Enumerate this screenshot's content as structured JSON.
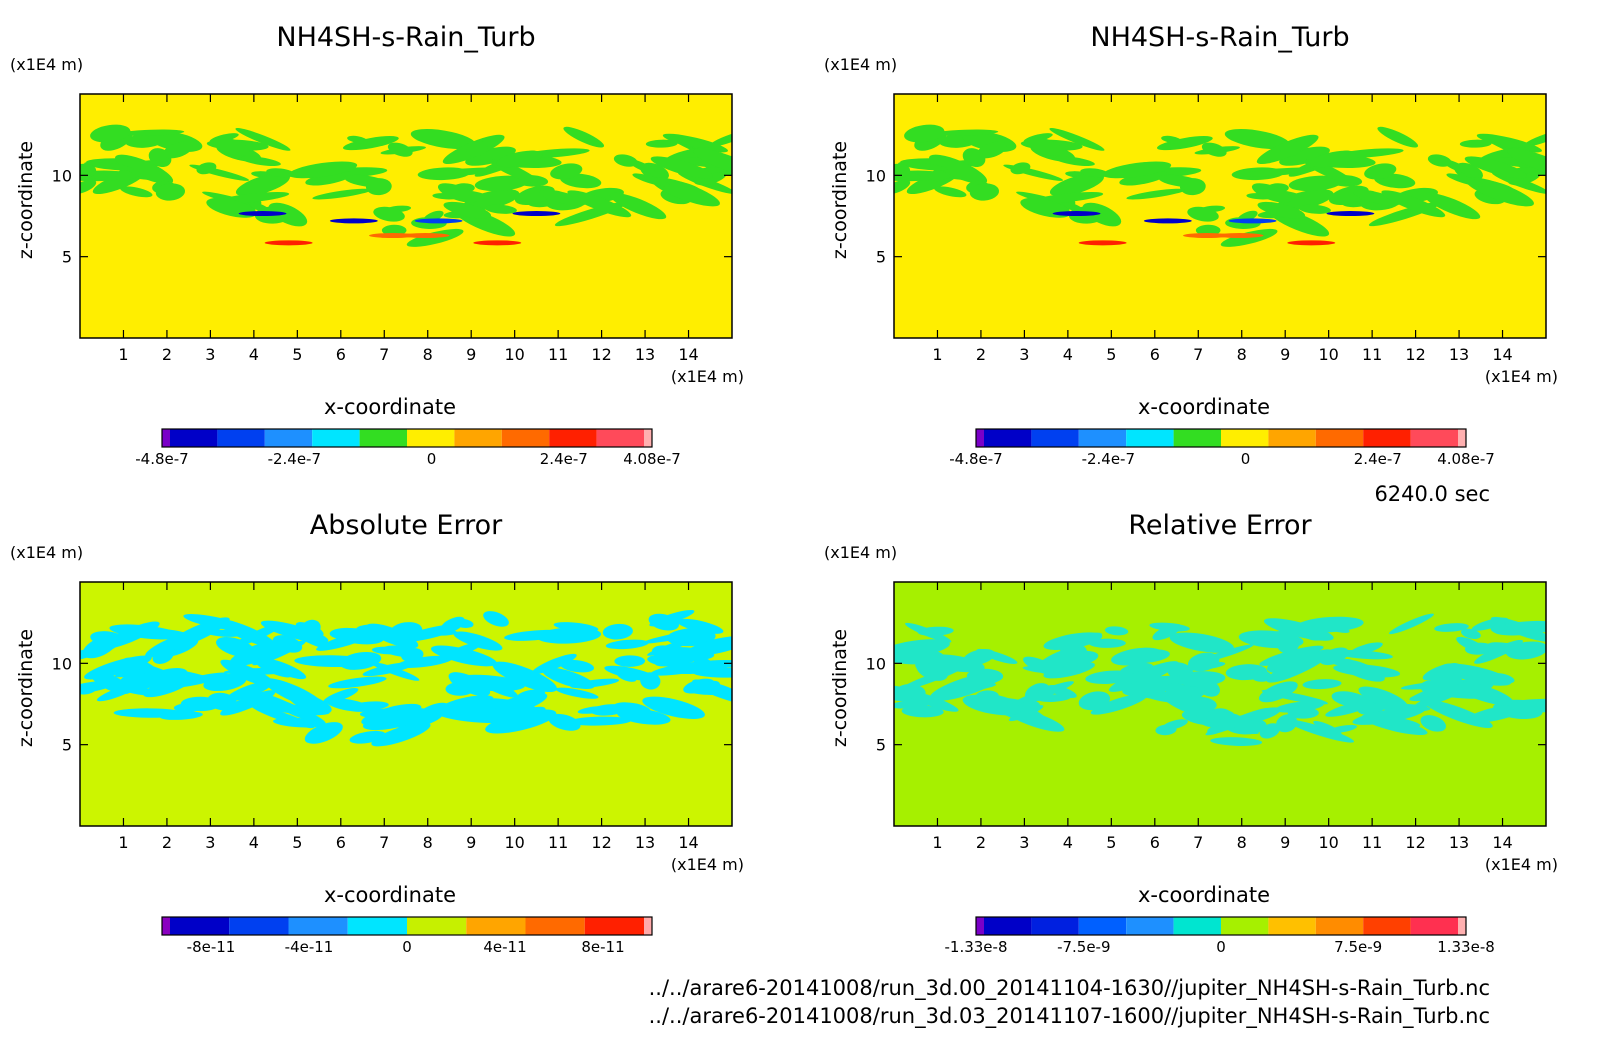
{
  "chart_data": [
    {
      "type": "heatmap",
      "title": "NH4SH-s-Rain_Turb",
      "xlabel": "x-coordinate",
      "ylabel": "z-coordinate",
      "x_unit": "(x1E4 m)",
      "y_unit": "(x1E4 m)",
      "x_ticks": [
        "1",
        "2",
        "3",
        "4",
        "5",
        "6",
        "7",
        "8",
        "9",
        "10",
        "11",
        "12",
        "13",
        "14"
      ],
      "y_ticks": [
        "5",
        "10"
      ],
      "colorbar": {
        "labels": [
          {
            "v": "-4.8e-7",
            "at": 0
          },
          {
            "v": "-2.4e-7",
            "at": 0.27
          },
          {
            "v": "0",
            "at": 0.55
          },
          {
            "v": "2.4e-7",
            "at": 0.82
          },
          {
            "v": "4.08e-7",
            "at": 1
          }
        ],
        "colors": [
          "#7a00c8",
          "#0000c8",
          "#0040f0",
          "#1e90ff",
          "#00e5ff",
          "#33dd22",
          "#ffee00",
          "#ffa500",
          "#ff6a00",
          "#ff2000",
          "#ff4a5a",
          "#ffb0b0"
        ]
      },
      "background": "#ffee00",
      "pattern": "#33dd22"
    },
    {
      "type": "heatmap",
      "title": "NH4SH-s-Rain_Turb",
      "xlabel": "x-coordinate",
      "ylabel": "z-coordinate",
      "x_unit": "(x1E4 m)",
      "y_unit": "(x1E4 m)",
      "x_ticks": [
        "1",
        "2",
        "3",
        "4",
        "5",
        "6",
        "7",
        "8",
        "9",
        "10",
        "11",
        "12",
        "13",
        "14"
      ],
      "y_ticks": [
        "5",
        "10"
      ],
      "colorbar": {
        "labels": [
          {
            "v": "-4.8e-7",
            "at": 0
          },
          {
            "v": "-2.4e-7",
            "at": 0.27
          },
          {
            "v": "0",
            "at": 0.55
          },
          {
            "v": "2.4e-7",
            "at": 0.82
          },
          {
            "v": "4.08e-7",
            "at": 1
          }
        ],
        "colors": [
          "#7a00c8",
          "#0000c8",
          "#0040f0",
          "#1e90ff",
          "#00e5ff",
          "#33dd22",
          "#ffee00",
          "#ffa500",
          "#ff6a00",
          "#ff2000",
          "#ff4a5a",
          "#ffb0b0"
        ]
      },
      "background": "#ffee00",
      "pattern": "#33dd22"
    },
    {
      "type": "heatmap",
      "title": "Absolute Error",
      "xlabel": "x-coordinate",
      "ylabel": "z-coordinate",
      "x_unit": "(x1E4 m)",
      "y_unit": "(x1E4 m)",
      "x_ticks": [
        "1",
        "2",
        "3",
        "4",
        "5",
        "6",
        "7",
        "8",
        "9",
        "10",
        "11",
        "12",
        "13",
        "14"
      ],
      "y_ticks": [
        "5",
        "10"
      ],
      "colorbar": {
        "labels": [
          {
            "v": "-8e-11",
            "at": 0.1
          },
          {
            "v": "-4e-11",
            "at": 0.3
          },
          {
            "v": "0",
            "at": 0.5
          },
          {
            "v": "4e-11",
            "at": 0.7
          },
          {
            "v": "8e-11",
            "at": 0.9
          }
        ],
        "colors": [
          "#8a00c0",
          "#0000c8",
          "#0040f0",
          "#1e90ff",
          "#00e5ff",
          "#c6f000",
          "#ffa500",
          "#ff6a00",
          "#ff2000",
          "#ffaaaa"
        ]
      },
      "background": "#ccf500",
      "pattern": "#00e5ff"
    },
    {
      "type": "heatmap",
      "title": "Relative Error",
      "xlabel": "x-coordinate",
      "ylabel": "z-coordinate",
      "x_unit": "(x1E4 m)",
      "y_unit": "(x1E4 m)",
      "x_ticks": [
        "1",
        "2",
        "3",
        "4",
        "5",
        "6",
        "7",
        "8",
        "9",
        "10",
        "11",
        "12",
        "13",
        "14"
      ],
      "y_ticks": [
        "5",
        "10"
      ],
      "colorbar": {
        "labels": [
          {
            "v": "-1.33e-8",
            "at": 0
          },
          {
            "v": "-7.5e-9",
            "at": 0.22
          },
          {
            "v": "0",
            "at": 0.5
          },
          {
            "v": "7.5e-9",
            "at": 0.78
          },
          {
            "v": "1.33e-8",
            "at": 1
          }
        ],
        "colors": [
          "#7a00c8",
          "#0000c8",
          "#0020e0",
          "#0060ff",
          "#1e90ff",
          "#00e5d0",
          "#a6f000",
          "#ffc000",
          "#ff8c00",
          "#ff4000",
          "#ff3050",
          "#ffb0b0"
        ]
      },
      "background": "#a6f000",
      "pattern": "#20e6c8"
    }
  ],
  "time_label": "6240.0 sec",
  "file_paths": [
    "../../arare6-20141008/run_3d.00_20141104-1630//jupiter_NH4SH-s-Rain_Turb.nc",
    "../../arare6-20141008/run_3d.03_20141107-1600//jupiter_NH4SH-s-Rain_Turb.nc"
  ]
}
